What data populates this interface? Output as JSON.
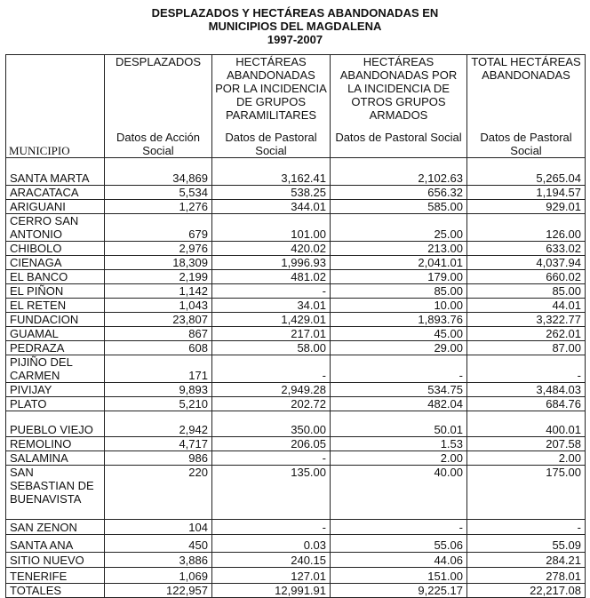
{
  "title": [
    "DESPLAZADOS Y HECTÁREAS ABANDONADAS EN",
    "MUNICIPIOS DEL MAGDALENA",
    "1997-2007"
  ],
  "headers": [
    {
      "label": "MUNICIPIO",
      "source": ""
    },
    {
      "label": "DESPLAZADOS",
      "source": "Datos de Acción Social"
    },
    {
      "label": "HECTÁREAS ABANDONADAS POR LA INCIDENCIA DE GRUPOS PARAMILITARES",
      "source": "Datos de Pastoral Social"
    },
    {
      "label": "HECTÁREAS ABANDONADAS POR LA INCIDENCIA DE OTROS GRUPOS ARMADOS",
      "source": "Datos de Pastoral Social"
    },
    {
      "label": "TOTAL HECTÁREAS ABANDONADAS",
      "source": "Datos de Pastoral Social"
    }
  ],
  "rows": [
    [
      "SANTA MARTA",
      "34,869",
      "3,162.41",
      "2,102.63",
      "5,265.04"
    ],
    [
      "ARACATACA",
      "5,534",
      "538.25",
      "656.32",
      "1,194.57"
    ],
    [
      "ARIGUANI",
      "1,276",
      "344.01",
      "585.00",
      "929.01"
    ],
    [
      "CERRO SAN ANTONIO",
      "679",
      "101.00",
      "25.00",
      "126.00"
    ],
    [
      "CHIBOLO",
      "2,976",
      "420.02",
      "213.00",
      "633.02"
    ],
    [
      "CIENAGA",
      "18,309",
      "1,996.93",
      "2,041.01",
      "4,037.94"
    ],
    [
      "EL BANCO",
      "2,199",
      "481.02",
      "179.00",
      "660.02"
    ],
    [
      "EL PIÑON",
      "1,142",
      "-",
      "85.00",
      "85.00"
    ],
    [
      "EL RETEN",
      "1,043",
      "34.01",
      "10.00",
      "44.01"
    ],
    [
      "FUNDACION",
      "23,807",
      "1,429.01",
      "1,893.76",
      "3,322.77"
    ],
    [
      "GUAMAL",
      "867",
      "217.01",
      "45.00",
      "262.01"
    ],
    [
      "PEDRAZA",
      "608",
      "58.00",
      "29.00",
      "87.00"
    ],
    [
      "PIJIÑO DEL CARMEN",
      "171",
      "-",
      "-",
      "-"
    ],
    [
      "PIVIJAY",
      "9,893",
      "2,949.28",
      "534.75",
      "3,484.03"
    ],
    [
      "PLATO",
      "5,210",
      "202.72",
      "482.04",
      "684.76"
    ],
    [
      "PUEBLO VIEJO",
      "2,942",
      "350.00",
      "50.01",
      "400.01"
    ],
    [
      "REMOLINO",
      "4,717",
      "206.05",
      "1.53",
      "207.58"
    ],
    [
      "SALAMINA",
      "986",
      "-",
      "2.00",
      "2.00"
    ],
    [
      "SAN SEBASTIAN DE BUENAVISTA",
      "220",
      "135.00",
      "40.00",
      "175.00"
    ],
    [
      "SAN ZENON",
      "104",
      "-",
      "-",
      "-"
    ],
    [
      "SANTA ANA",
      "450",
      "0.03",
      "55.06",
      "55.09"
    ],
    [
      "SITIO NUEVO",
      "3,886",
      "240.15",
      "44.06",
      "284.21"
    ],
    [
      "TENERIFE",
      "1,069",
      "127.01",
      "151.00",
      "278.01"
    ],
    [
      " TOTALES",
      "122,957",
      "12,991.91",
      "9,225.17",
      "22,217.08"
    ]
  ]
}
